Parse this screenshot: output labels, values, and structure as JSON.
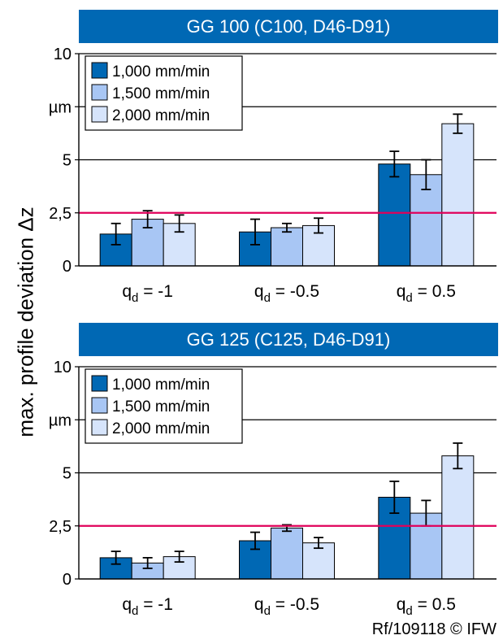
{
  "page": {
    "y_label": "max. profile deviation Δz",
    "footer": "Rf/109118 © IFW"
  },
  "colors": {
    "banner": "#0068b4",
    "series": [
      "#0068b4",
      "#a8c6f4",
      "#d6e4fb"
    ],
    "reference_line": "#e0005a"
  },
  "chart_data": [
    {
      "type": "bar",
      "title": "GG 100 (C100, D46-D91)",
      "categories": [
        {
          "main": "q",
          "sub": "d",
          "rest": " = -1"
        },
        {
          "main": "q",
          "sub": "d",
          "rest": " = -0.5"
        },
        {
          "main": "q",
          "sub": "d",
          "rest": " = 0.5"
        }
      ],
      "series": [
        {
          "name": "1,000 mm/min",
          "values": [
            1.5,
            1.6,
            4.8
          ],
          "error": [
            0.5,
            0.6,
            0.6
          ]
        },
        {
          "name": "1,500 mm/min",
          "values": [
            2.2,
            1.8,
            4.3
          ],
          "error": [
            0.4,
            0.2,
            0.7
          ]
        },
        {
          "name": "2,000 mm/min",
          "values": [
            2.0,
            1.9,
            6.7
          ],
          "error": [
            0.4,
            0.35,
            0.45
          ]
        }
      ],
      "ylim": [
        0,
        10
      ],
      "y_ticks": [
        {
          "value": 0,
          "label": "0"
        },
        {
          "value": 2.5,
          "label": "2,5"
        },
        {
          "value": 5,
          "label": "5"
        },
        {
          "value": 7.5,
          "label": "µm"
        },
        {
          "value": 10,
          "label": "10"
        }
      ],
      "reference_line": 2.5,
      "grid": true,
      "legend": "top-left"
    },
    {
      "type": "bar",
      "title": "GG 125 (C125, D46-D91)",
      "categories": [
        {
          "main": "q",
          "sub": "d",
          "rest": " = -1"
        },
        {
          "main": "q",
          "sub": "d",
          "rest": " = -0.5"
        },
        {
          "main": "q",
          "sub": "d",
          "rest": " = 0.5"
        }
      ],
      "series": [
        {
          "name": "1,000 mm/min",
          "values": [
            1.0,
            1.8,
            3.85
          ],
          "error": [
            0.3,
            0.4,
            0.75
          ]
        },
        {
          "name": "1,500 mm/min",
          "values": [
            0.75,
            2.4,
            3.1
          ],
          "error": [
            0.25,
            0.15,
            0.6
          ]
        },
        {
          "name": "2,000 mm/min",
          "values": [
            1.05,
            1.7,
            5.8
          ],
          "error": [
            0.25,
            0.25,
            0.6
          ]
        }
      ],
      "ylim": [
        0,
        10
      ],
      "y_ticks": [
        {
          "value": 0,
          "label": "0"
        },
        {
          "value": 2.5,
          "label": "2,5"
        },
        {
          "value": 5,
          "label": "5"
        },
        {
          "value": 7.5,
          "label": "µm"
        },
        {
          "value": 10,
          "label": "10"
        }
      ],
      "reference_line": 2.5,
      "grid": true,
      "legend": "top-left"
    }
  ]
}
